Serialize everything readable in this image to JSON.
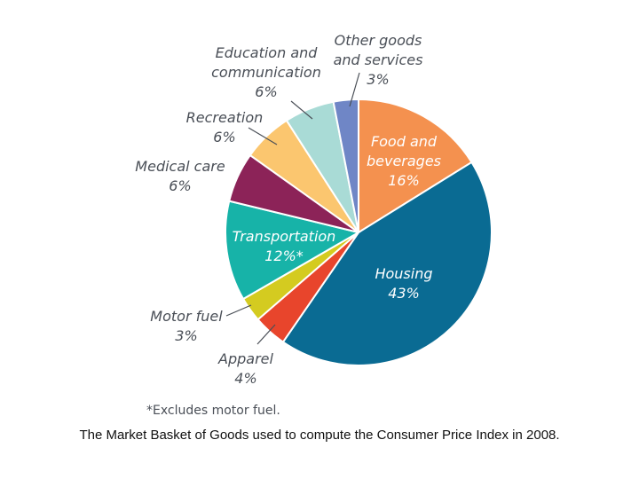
{
  "chart_data": {
    "type": "pie",
    "footnote": "*Excludes motor fuel.",
    "caption": "The Market Basket of Goods used to compute the Consumer Price Index in 2008.",
    "slices": [
      {
        "label_lines": [
          "Food and",
          "beverages"
        ],
        "value": 16,
        "value_text": "16%",
        "color": "#f4914f"
      },
      {
        "label_lines": [
          "Housing"
        ],
        "value": 43,
        "value_text": "43%",
        "color": "#0a6b93"
      },
      {
        "label_lines": [
          "Apparel"
        ],
        "value": 4,
        "value_text": "4%",
        "color": "#e8452c"
      },
      {
        "label_lines": [
          "Motor fuel"
        ],
        "value": 3,
        "value_text": "3%",
        "color": "#d4cb20"
      },
      {
        "label_lines": [
          "Transportation"
        ],
        "value": 12,
        "value_text": "12%*",
        "color": "#17b3a8"
      },
      {
        "label_lines": [
          "Medical care"
        ],
        "value": 6,
        "value_text": "6%",
        "color": "#8c2358"
      },
      {
        "label_lines": [
          "Recreation"
        ],
        "value": 6,
        "value_text": "6%",
        "color": "#fbc66f"
      },
      {
        "label_lines": [
          "Education and",
          "communication"
        ],
        "value": 6,
        "value_text": "6%",
        "color": "#a9dbd6"
      },
      {
        "label_lines": [
          "Other goods",
          "and services"
        ],
        "value": 3,
        "value_text": "3%",
        "color": "#6f86c6"
      }
    ]
  }
}
